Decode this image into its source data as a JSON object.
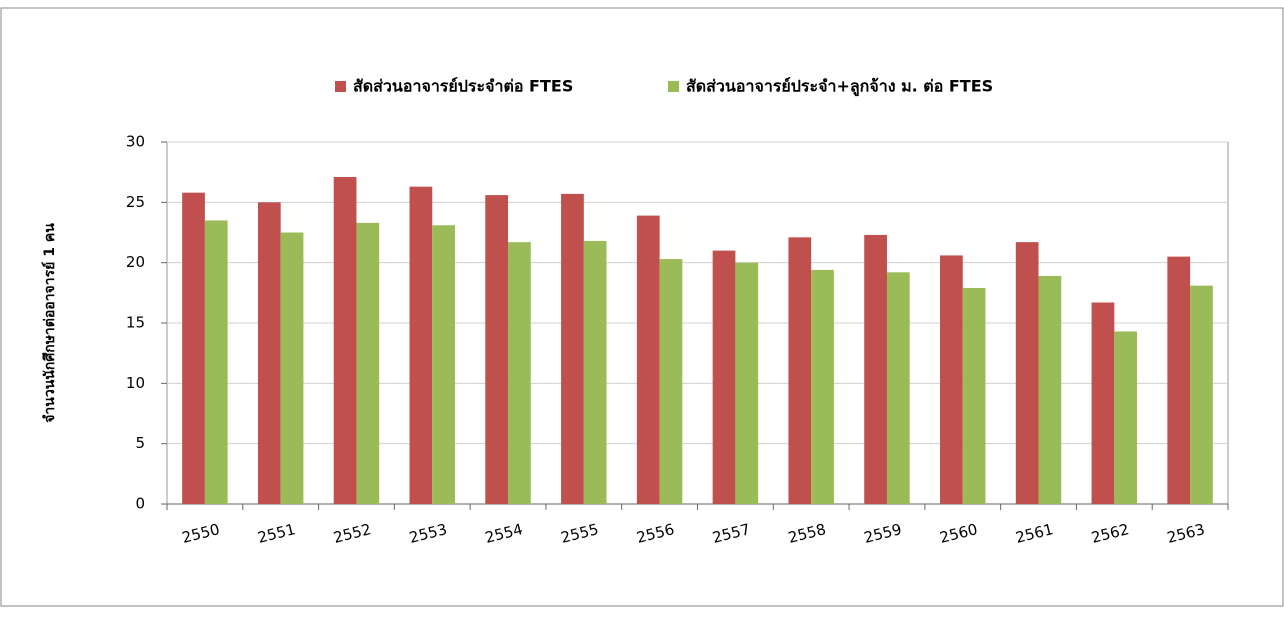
{
  "chart_data": {
    "type": "bar",
    "y_label": "จำนวนนักศึกษาต่ออาจารย์ 1 คน",
    "categories": [
      "2550",
      "2551",
      "2552",
      "2553",
      "2554",
      "2555",
      "2556",
      "2557",
      "2558",
      "2559",
      "2560",
      "2561",
      "2562",
      "2563"
    ],
    "series": [
      {
        "name": "สัดส่วนอาจารย์ประจำต่อ FTES",
        "color": "#c0504d",
        "values": [
          25.8,
          25.0,
          27.1,
          26.3,
          25.6,
          25.7,
          23.9,
          21.0,
          22.1,
          22.3,
          20.6,
          21.7,
          16.7,
          20.5
        ]
      },
      {
        "name": "สัดส่วนอาจารย์ประจำ+ลูกจ้าง ม. ต่อ FTES",
        "color": "#9bbb59",
        "values": [
          23.5,
          22.5,
          23.3,
          23.1,
          21.7,
          21.8,
          20.3,
          20.0,
          19.4,
          19.2,
          17.9,
          18.9,
          14.3,
          18.1
        ]
      }
    ],
    "ylim": [
      0,
      30
    ],
    "yticks": [
      0,
      5,
      10,
      15,
      20,
      25,
      30
    ],
    "grid": true,
    "legend": "top"
  }
}
